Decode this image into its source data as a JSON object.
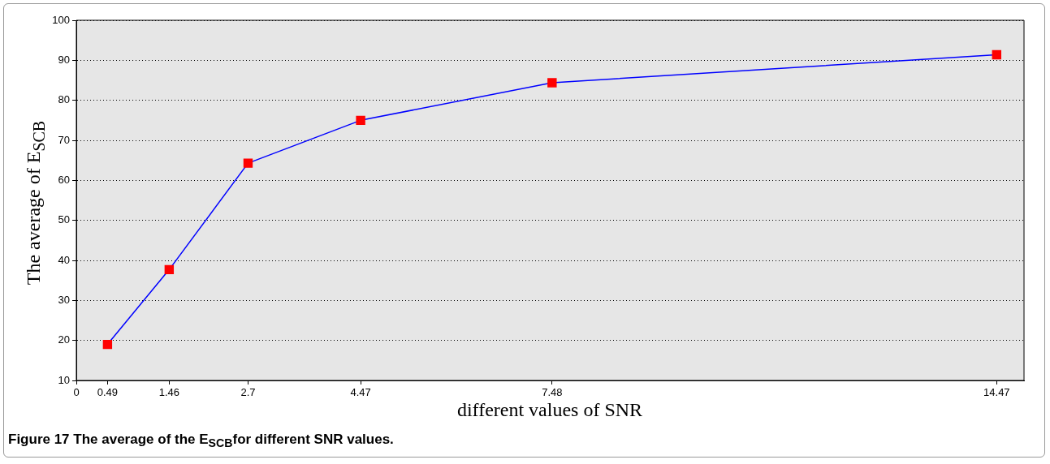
{
  "chart_data": {
    "type": "line",
    "xlabel": "different values of SNR",
    "ylabel": "The average of E$_{SCB}$",
    "annotations": [
      "Figure 17 The average of the E$_{SCB}$for different SNR values."
    ],
    "x": [
      0.49,
      1.46,
      2.7,
      4.47,
      7.48,
      14.47
    ],
    "series": [
      {
        "color": "#0000ff",
        "values": [
          19,
          37.7,
          64.3,
          75,
          84.4,
          91.4
        ]
      }
    ],
    "xlim": [
      0,
      14.9
    ],
    "xticks": [
      0,
      0.49,
      1.46,
      2.7,
      4.47,
      7.48,
      14.47
    ],
    "ylim": [
      10,
      100
    ],
    "yticks": [
      10,
      20,
      30,
      40,
      50,
      60,
      70,
      80,
      90,
      100
    ],
    "grid": "y",
    "legend": false,
    "marker": "square",
    "line_style": "solid"
  }
}
